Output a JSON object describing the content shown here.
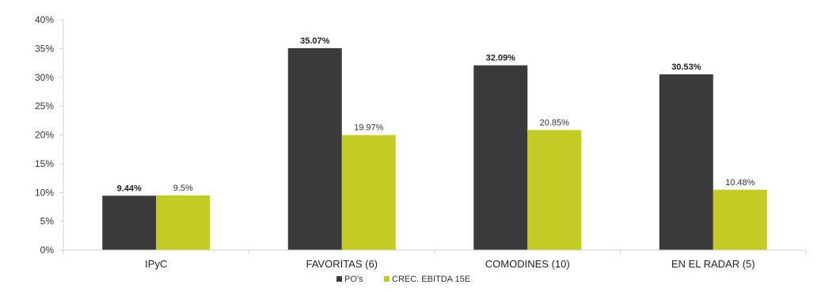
{
  "chart_data": {
    "type": "bar",
    "categories": [
      "IPyC",
      "FAVORITAS (6)",
      "COMODINES (10)",
      "EN EL RADAR (5)"
    ],
    "series": [
      {
        "name": "PO's",
        "values": [
          9.44,
          35.07,
          32.09,
          30.53
        ],
        "labels": [
          "9.44%",
          "35.07%",
          "32.09%",
          "30.53%"
        ],
        "color": "#3a3a3a"
      },
      {
        "name": "CREC. EBITDA 15E",
        "values": [
          9.5,
          19.97,
          20.85,
          10.48
        ],
        "labels": [
          "9.5%",
          "19.97%",
          "20.85%",
          "10.48%"
        ],
        "color": "#c3cc24"
      }
    ],
    "ylim": [
      0,
      40
    ],
    "yticks": [
      0,
      5,
      10,
      15,
      20,
      25,
      30,
      35,
      40
    ],
    "ytick_labels": [
      "0%",
      "5%",
      "10%",
      "15%",
      "20%",
      "25%",
      "30%",
      "35%",
      "40%"
    ],
    "grid": false,
    "legend_position": "bottom",
    "axis_color": "#d0d0d0"
  }
}
